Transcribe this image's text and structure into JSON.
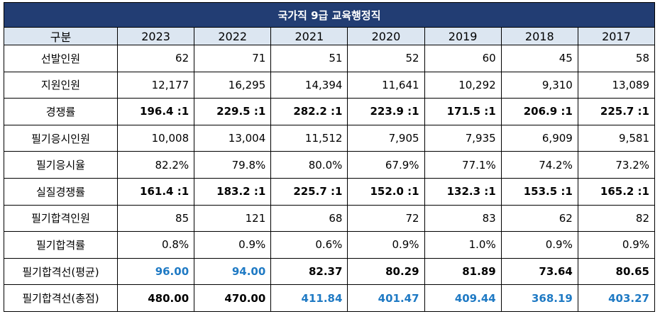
{
  "title": "국가직 9급 교육행정직",
  "header": {
    "label": "구분",
    "years": [
      "2023",
      "2022",
      "2021",
      "2020",
      "2019",
      "2018",
      "2017"
    ]
  },
  "rows": [
    {
      "label": "선발인원",
      "style": "normal",
      "values": [
        "62",
        "71",
        "51",
        "52",
        "60",
        "45",
        "58"
      ],
      "blue": [
        false,
        false,
        false,
        false,
        false,
        false,
        false
      ],
      "bold": [
        false,
        false,
        false,
        false,
        false,
        false,
        false
      ]
    },
    {
      "label": "지원인원",
      "style": "normal",
      "values": [
        "12,177",
        "16,295",
        "14,394",
        "11,641",
        "10,292",
        "9,310",
        "13,089"
      ],
      "blue": [
        false,
        false,
        false,
        false,
        false,
        false,
        false
      ],
      "bold": [
        false,
        false,
        false,
        false,
        false,
        false,
        false
      ]
    },
    {
      "label": "경쟁률",
      "style": "bold",
      "values": [
        "196.4 :1",
        "229.5 :1",
        "282.2 :1",
        "223.9 :1",
        "171.5 :1",
        "206.9 :1",
        "225.7 :1"
      ],
      "blue": [
        false,
        false,
        false,
        false,
        false,
        false,
        false
      ],
      "bold": [
        true,
        true,
        true,
        true,
        true,
        true,
        true
      ]
    },
    {
      "label": "필기응시인원",
      "style": "normal",
      "values": [
        "10,008",
        "13,004",
        "11,512",
        "7,905",
        "7,935",
        "6,909",
        "9,581"
      ],
      "blue": [
        false,
        false,
        false,
        false,
        false,
        false,
        false
      ],
      "bold": [
        false,
        false,
        false,
        false,
        false,
        false,
        false
      ]
    },
    {
      "label": "필기응시율",
      "style": "normal",
      "values": [
        "82.2%",
        "79.8%",
        "80.0%",
        "67.9%",
        "77.1%",
        "74.2%",
        "73.2%"
      ],
      "blue": [
        false,
        false,
        false,
        false,
        false,
        false,
        false
      ],
      "bold": [
        false,
        false,
        false,
        false,
        false,
        false,
        false
      ]
    },
    {
      "label": "실질경쟁률",
      "style": "bold",
      "values": [
        "161.4 :1",
        "183.2 :1",
        "225.7 :1",
        "152.0 :1",
        "132.3 :1",
        "153.5 :1",
        "165.2 :1"
      ],
      "blue": [
        false,
        false,
        false,
        false,
        false,
        false,
        false
      ],
      "bold": [
        true,
        true,
        true,
        true,
        true,
        true,
        true
      ]
    },
    {
      "label": "필기합격인원",
      "style": "normal",
      "values": [
        "85",
        "121",
        "68",
        "72",
        "83",
        "62",
        "82"
      ],
      "blue": [
        false,
        false,
        false,
        false,
        false,
        false,
        false
      ],
      "bold": [
        false,
        false,
        false,
        false,
        false,
        false,
        false
      ]
    },
    {
      "label": "필기합격률",
      "style": "normal",
      "values": [
        "0.8%",
        "0.9%",
        "0.6%",
        "0.9%",
        "1.0%",
        "0.9%",
        "0.9%"
      ],
      "blue": [
        false,
        false,
        false,
        false,
        false,
        false,
        false
      ],
      "bold": [
        false,
        false,
        false,
        false,
        false,
        false,
        false
      ]
    },
    {
      "label": "필기합격선(평균)",
      "style": "mixed",
      "values": [
        "96.00",
        "94.00",
        "82.37",
        "80.29",
        "81.89",
        "73.64",
        "80.65"
      ],
      "blue": [
        true,
        true,
        false,
        false,
        false,
        false,
        false
      ],
      "bold": [
        true,
        true,
        true,
        true,
        true,
        true,
        true
      ]
    },
    {
      "label": "필기합격선(총점)",
      "style": "mixed",
      "values": [
        "480.00",
        "470.00",
        "411.84",
        "401.47",
        "409.44",
        "368.19",
        "403.27"
      ],
      "blue": [
        false,
        false,
        true,
        true,
        true,
        true,
        true
      ],
      "bold": [
        true,
        true,
        true,
        true,
        true,
        true,
        true
      ]
    }
  ],
  "colors": {
    "title_bg": "#223d73",
    "header_bg": "#dce6f1",
    "highlight": "#1f7ac4"
  }
}
